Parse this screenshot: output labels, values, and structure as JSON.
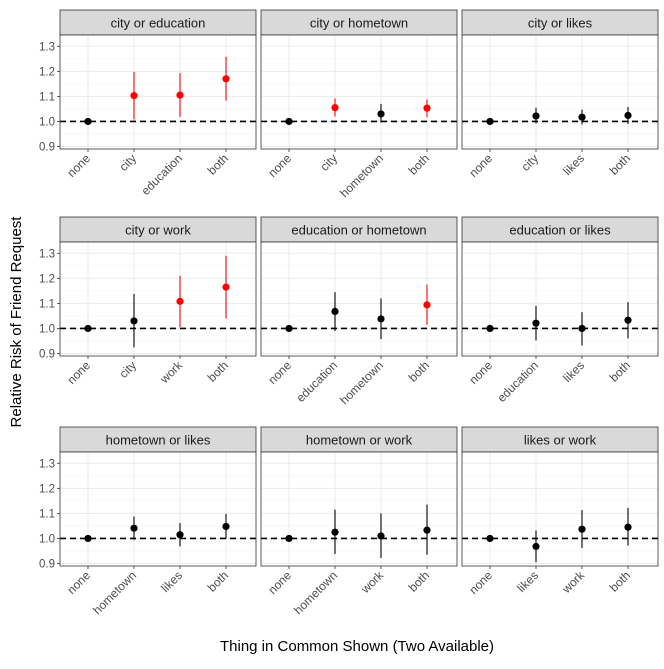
{
  "chart_data": {
    "type": "faceted-pointrange",
    "xlabel": "Thing in Common Shown (Two Available)",
    "ylabel": "Relative Risk of Friend Request",
    "ylim": [
      0.89,
      1.345
    ],
    "yticks": [
      0.9,
      1.0,
      1.1,
      1.2,
      1.3
    ],
    "ytick_labels": [
      "0.9",
      "1.0",
      "1.1",
      "1.2",
      "1.3"
    ],
    "reference_line": 1.0,
    "colors": {
      "significant": "#ff0000",
      "not_significant": "#000000",
      "strip_bg": "#d9d9d9",
      "grid": "#ebebeb"
    },
    "panels": [
      {
        "title": "city or education",
        "categories": [
          "none",
          "city",
          "education",
          "both"
        ],
        "points": [
          {
            "est": 1.0,
            "lo": 1.0,
            "hi": 1.0,
            "sig": false
          },
          {
            "est": 1.103,
            "lo": 1.008,
            "hi": 1.198,
            "sig": true
          },
          {
            "est": 1.105,
            "lo": 1.018,
            "hi": 1.193,
            "sig": true
          },
          {
            "est": 1.17,
            "lo": 1.083,
            "hi": 1.258,
            "sig": true
          }
        ]
      },
      {
        "title": "city or hometown",
        "categories": [
          "none",
          "city",
          "hometown",
          "both"
        ],
        "points": [
          {
            "est": 1.0,
            "lo": 1.0,
            "hi": 1.0,
            "sig": false
          },
          {
            "est": 1.055,
            "lo": 1.02,
            "hi": 1.092,
            "sig": true
          },
          {
            "est": 1.03,
            "lo": 0.995,
            "hi": 1.07,
            "sig": false
          },
          {
            "est": 1.053,
            "lo": 1.017,
            "hi": 1.088,
            "sig": true
          }
        ]
      },
      {
        "title": "city or likes",
        "categories": [
          "none",
          "city",
          "likes",
          "both"
        ],
        "points": [
          {
            "est": 1.0,
            "lo": 1.0,
            "hi": 1.0,
            "sig": false
          },
          {
            "est": 1.022,
            "lo": 0.992,
            "hi": 1.055,
            "sig": false
          },
          {
            "est": 1.017,
            "lo": 0.988,
            "hi": 1.047,
            "sig": false
          },
          {
            "est": 1.024,
            "lo": 0.99,
            "hi": 1.058,
            "sig": false
          }
        ]
      },
      {
        "title": "city or work",
        "categories": [
          "none",
          "city",
          "work",
          "both"
        ],
        "points": [
          {
            "est": 1.0,
            "lo": 1.0,
            "hi": 1.0,
            "sig": false
          },
          {
            "est": 1.03,
            "lo": 0.925,
            "hi": 1.138,
            "sig": false
          },
          {
            "est": 1.108,
            "lo": 1.005,
            "hi": 1.21,
            "sig": true
          },
          {
            "est": 1.165,
            "lo": 1.04,
            "hi": 1.29,
            "sig": true
          }
        ]
      },
      {
        "title": "education or hometown",
        "categories": [
          "none",
          "education",
          "hometown",
          "both"
        ],
        "points": [
          {
            "est": 1.0,
            "lo": 1.0,
            "hi": 1.0,
            "sig": false
          },
          {
            "est": 1.068,
            "lo": 0.99,
            "hi": 1.145,
            "sig": false
          },
          {
            "est": 1.038,
            "lo": 0.957,
            "hi": 1.12,
            "sig": false
          },
          {
            "est": 1.094,
            "lo": 1.015,
            "hi": 1.175,
            "sig": true
          }
        ]
      },
      {
        "title": "education or likes",
        "categories": [
          "none",
          "education",
          "likes",
          "both"
        ],
        "points": [
          {
            "est": 1.0,
            "lo": 1.0,
            "hi": 1.0,
            "sig": false
          },
          {
            "est": 1.021,
            "lo": 0.952,
            "hi": 1.09,
            "sig": false
          },
          {
            "est": 1.0,
            "lo": 0.932,
            "hi": 1.065,
            "sig": false
          },
          {
            "est": 1.033,
            "lo": 0.96,
            "hi": 1.105,
            "sig": false
          }
        ]
      },
      {
        "title": "hometown or likes",
        "categories": [
          "none",
          "hometown",
          "likes",
          "both"
        ],
        "points": [
          {
            "est": 1.0,
            "lo": 1.0,
            "hi": 1.0,
            "sig": false
          },
          {
            "est": 1.041,
            "lo": 0.995,
            "hi": 1.088,
            "sig": false
          },
          {
            "est": 1.015,
            "lo": 0.968,
            "hi": 1.062,
            "sig": false
          },
          {
            "est": 1.048,
            "lo": 1.0,
            "hi": 1.098,
            "sig": false
          }
        ]
      },
      {
        "title": "hometown or work",
        "categories": [
          "none",
          "hometown",
          "work",
          "both"
        ],
        "points": [
          {
            "est": 1.0,
            "lo": 1.0,
            "hi": 1.0,
            "sig": false
          },
          {
            "est": 1.025,
            "lo": 0.938,
            "hi": 1.115,
            "sig": false
          },
          {
            "est": 1.01,
            "lo": 0.922,
            "hi": 1.1,
            "sig": false
          },
          {
            "est": 1.033,
            "lo": 0.935,
            "hi": 1.135,
            "sig": false
          }
        ]
      },
      {
        "title": "likes or work",
        "categories": [
          "none",
          "likes",
          "work",
          "both"
        ],
        "points": [
          {
            "est": 1.0,
            "lo": 1.0,
            "hi": 1.0,
            "sig": false
          },
          {
            "est": 0.968,
            "lo": 0.905,
            "hi": 1.032,
            "sig": false
          },
          {
            "est": 1.037,
            "lo": 0.962,
            "hi": 1.113,
            "sig": false
          },
          {
            "est": 1.045,
            "lo": 0.972,
            "hi": 1.122,
            "sig": false
          }
        ]
      }
    ]
  }
}
